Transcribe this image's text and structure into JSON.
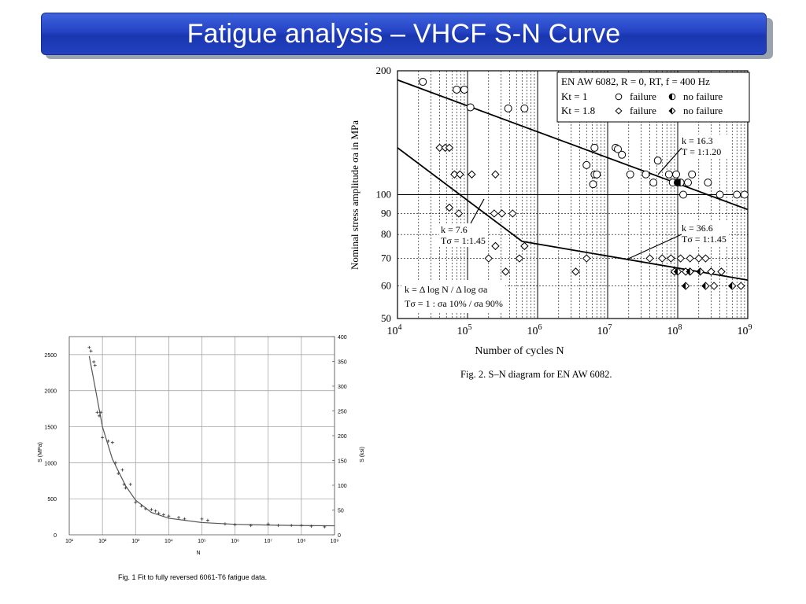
{
  "slide": {
    "title": "Fatigue analysis – VHCF  S-N Curve"
  },
  "chart_data": [
    {
      "type": "scatter",
      "xscale": "log",
      "yscale": "log",
      "xlim": [
        10000,
        1000000000
      ],
      "ylim": [
        50,
        200
      ],
      "xlabel": "Number of cycles N",
      "ylabel": "Nominal stress amplitude σa in MPa",
      "x_tick_labels": [
        "10^4",
        "10^5",
        "10^6",
        "10^7",
        "10^8",
        "10^9"
      ],
      "y_tick_labels": [
        "50",
        "60",
        "70",
        "80",
        "90",
        "100",
        "200"
      ],
      "legend_title": "EN AW 6082, R = 0, RT, f = 400 Hz",
      "legend": [
        {
          "label_left": "Kt = 1",
          "failure": "failure",
          "no_failure": "no failure"
        },
        {
          "label_left": "Kt = 1.8",
          "failure": "failure",
          "no_failure": "no failure"
        }
      ],
      "annotations": {
        "a1_line1": "k = 16.3",
        "a1_line2": "T = 1:1.20",
        "a2_line1": "k = 36.6",
        "a2_line2": "Tσ = 1:1.45",
        "a3_line1": "k = 7.6",
        "a3_line2": "Tσ = 1:1.45",
        "formula1": "k = Δ log N / Δ log σa",
        "formula2": "Tσ = 1 : σa 10% / σa 90%"
      },
      "caption": "Fig. 2.  S–N diagram for EN AW 6082.",
      "series": [
        {
          "name": "Kt = 1 failure",
          "marker": "circle-open",
          "points": [
            [
              23000,
              188
            ],
            [
              70000,
              180
            ],
            [
              90000,
              180
            ],
            [
              110000,
              163
            ],
            [
              380000,
              162
            ],
            [
              650000,
              162
            ],
            [
              5000000,
              118
            ],
            [
              6200000,
              106
            ],
            [
              6500000,
              112
            ],
            [
              6500000,
              130
            ],
            [
              7000000,
              112
            ],
            [
              13000000,
              130
            ],
            [
              14000000,
              129
            ],
            [
              16000000,
              125
            ],
            [
              21000000,
              112
            ],
            [
              35000000,
              112
            ],
            [
              45000000,
              107
            ],
            [
              52000000,
              121
            ],
            [
              75000000,
              112
            ],
            [
              85000000,
              107
            ],
            [
              95000000,
              112
            ],
            [
              120000000,
              100
            ],
            [
              140000000,
              107
            ],
            [
              160000000,
              112
            ],
            [
              270000000,
              107
            ],
            [
              400000000,
              100
            ],
            [
              700000000,
              100
            ],
            [
              900000000,
              100
            ]
          ]
        },
        {
          "name": "Kt = 1 no failure",
          "marker": "circle-half",
          "points": [
            [
              100000000,
              107
            ],
            [
              110000000,
              107
            ]
          ]
        },
        {
          "name": "Kt = 1.8 failure",
          "marker": "diamond-open",
          "points": [
            [
              40000,
              130
            ],
            [
              48000,
              130
            ],
            [
              55000,
              130
            ],
            [
              65000,
              112
            ],
            [
              78000,
              112
            ],
            [
              55000,
              93
            ],
            [
              75000,
              90
            ],
            [
              115000,
              112
            ],
            [
              250000,
              112
            ],
            [
              240000,
              90
            ],
            [
              310000,
              90
            ],
            [
              440000,
              90
            ],
            [
              200000,
              70
            ],
            [
              250000,
              75
            ],
            [
              350000,
              65
            ],
            [
              550000,
              70
            ],
            [
              650000,
              75
            ],
            [
              3500000,
              65
            ],
            [
              5000000,
              70
            ],
            [
              40000000,
              70
            ],
            [
              60000000,
              70
            ],
            [
              80000000,
              70
            ],
            [
              110000000,
              70
            ],
            [
              150000000,
              70
            ],
            [
              200000000,
              70
            ],
            [
              250000000,
              70
            ],
            [
              90000000,
              65
            ],
            [
              130000000,
              65
            ],
            [
              300000000,
              65
            ],
            [
              420000000,
              65
            ],
            [
              330000000,
              60
            ],
            [
              800000000,
              60
            ]
          ]
        },
        {
          "name": "Kt = 1.8 no failure",
          "marker": "diamond-filled",
          "points": [
            [
              100000000,
              65
            ],
            [
              150000000,
              65
            ],
            [
              210000000,
              65
            ],
            [
              130000000,
              60
            ],
            [
              250000000,
              60
            ],
            [
              600000000,
              60
            ]
          ]
        }
      ],
      "fit_lines": [
        {
          "name": "Kt = 1",
          "points": [
            [
              10000,
              190
            ],
            [
              1000000000,
              92
            ]
          ]
        },
        {
          "name": "Kt = 1.8",
          "points": [
            [
              10000,
              130
            ],
            [
              600000,
              77
            ],
            [
              1000000000,
              62
            ]
          ]
        }
      ]
    },
    {
      "type": "scatter",
      "xscale": "log",
      "xlim": [
        10,
        1000000000
      ],
      "ylim": [
        0,
        2750
      ],
      "y2lim": [
        0,
        400
      ],
      "xlabel": "N",
      "ylabel": "S (MPa)",
      "y2label": "S (ksi)",
      "x_tick_labels": [
        "10¹",
        "10²",
        "10³",
        "10⁴",
        "10⁵",
        "10⁶",
        "10⁷",
        "10⁸",
        "10⁹"
      ],
      "y_tick_labels": [
        "0",
        "500",
        "1000",
        "1500",
        "2000",
        "2500"
      ],
      "y2_tick_labels": [
        "0",
        "50",
        "100",
        "150",
        "200",
        "250",
        "300",
        "350",
        "400"
      ],
      "caption": "Fig. 1  Fit to fully reversed 6061-T6 fatigue data.",
      "series": [
        {
          "name": "data",
          "marker": "plus",
          "points": [
            [
              40,
              2600
            ],
            [
              45,
              2550
            ],
            [
              55,
              2400
            ],
            [
              60,
              2350
            ],
            [
              70,
              1700
            ],
            [
              80,
              1650
            ],
            [
              90,
              1700
            ],
            [
              100,
              1350
            ],
            [
              150,
              1300
            ],
            [
              200,
              1280
            ],
            [
              250,
              1000
            ],
            [
              300,
              850
            ],
            [
              400,
              900
            ],
            [
              450,
              700
            ],
            [
              500,
              650
            ],
            [
              700,
              700
            ],
            [
              1000,
              450
            ],
            [
              1500,
              400
            ],
            [
              2000,
              360
            ],
            [
              3000,
              350
            ],
            [
              4000,
              330
            ],
            [
              5000,
              300
            ],
            [
              7000,
              280
            ],
            [
              10000,
              260
            ],
            [
              20000,
              240
            ],
            [
              30000,
              220
            ],
            [
              100000,
              220
            ],
            [
              150000,
              200
            ],
            [
              500000,
              150
            ],
            [
              1000000,
              140
            ],
            [
              3000000,
              130
            ],
            [
              10000000,
              150
            ],
            [
              20000000,
              130
            ],
            [
              50000000,
              130
            ],
            [
              100000000,
              130
            ],
            [
              200000000,
              120
            ],
            [
              500000000,
              110
            ]
          ]
        }
      ],
      "fit_curve": [
        [
          40,
          2480
        ],
        [
          60,
          2050
        ],
        [
          100,
          1500
        ],
        [
          200,
          1050
        ],
        [
          500,
          680
        ],
        [
          1000,
          480
        ],
        [
          3000,
          310
        ],
        [
          10000,
          230
        ],
        [
          100000,
          170
        ],
        [
          1000000,
          145
        ],
        [
          10000000,
          135
        ],
        [
          100000000,
          128
        ],
        [
          1000000000,
          125
        ]
      ]
    }
  ]
}
